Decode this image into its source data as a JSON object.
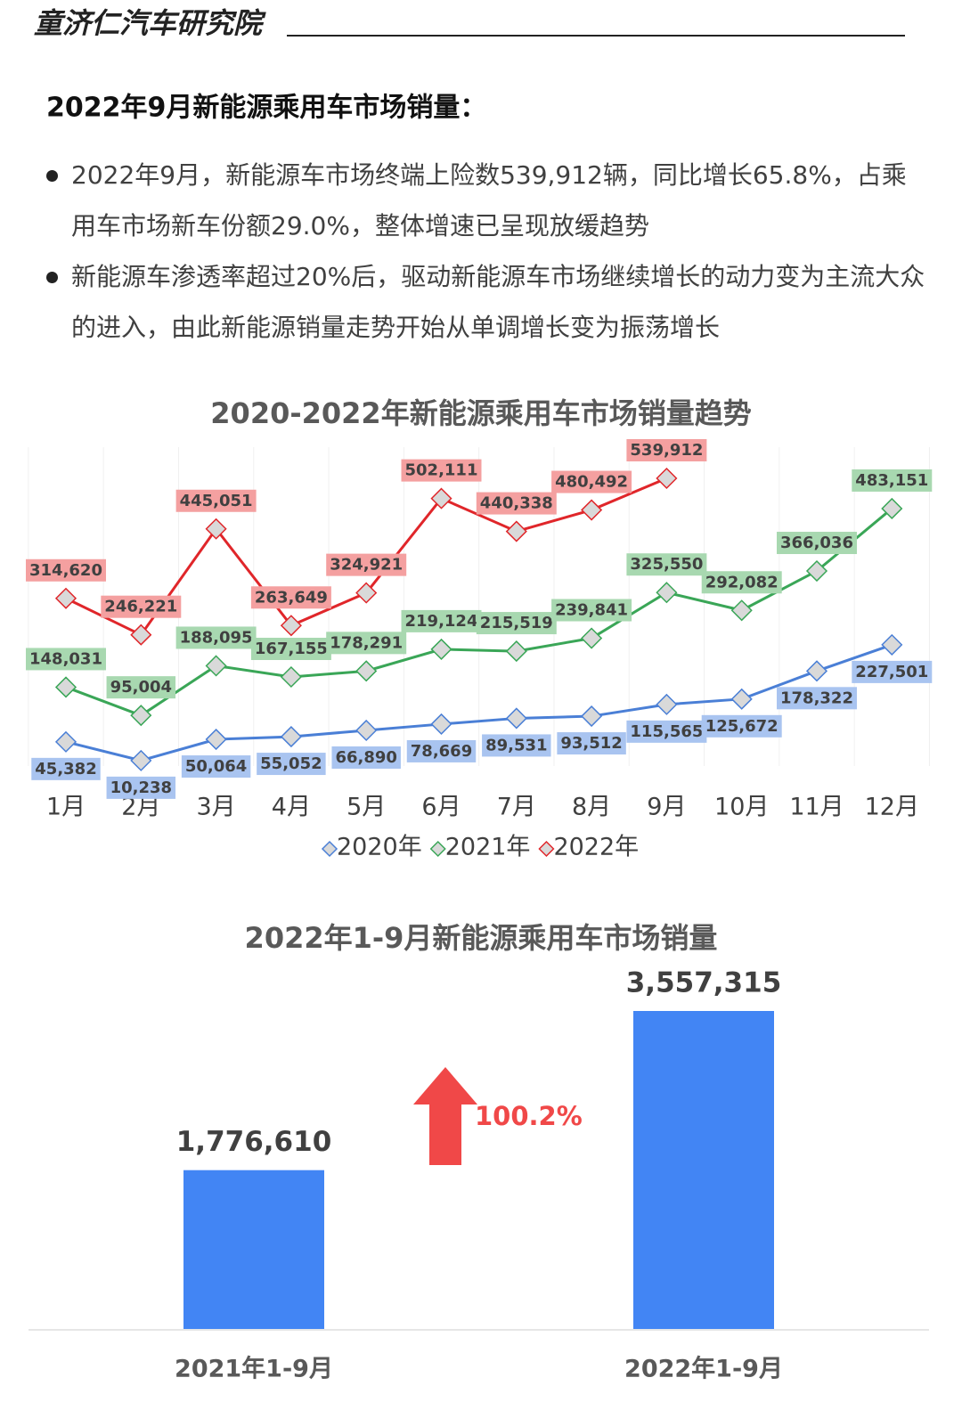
{
  "header": {
    "brand": "童济仁汽车研究院"
  },
  "section": {
    "title": "2022年9月新能源乘用车市场销量：",
    "bullets": [
      "2022年9月，新能源车市场终端上险数539,912辆，同比增长65.8%，占乘用车市场新车份额29.0%，整体增速已呈现放缓趋势",
      "新能源车渗透率超过20%后，驱动新能源车市场继续增长的动力变为主流大众的进入，由此新能源销量走势开始从单调增长变为振荡增长"
    ]
  },
  "chart_data": [
    {
      "type": "line",
      "title": "2020-2022年新能源乘用车市场销量趋势",
      "categories": [
        "1月",
        "2月",
        "3月",
        "4月",
        "5月",
        "6月",
        "7月",
        "8月",
        "9月",
        "10月",
        "11月",
        "12月"
      ],
      "series": [
        {
          "name": "2020年",
          "color": "#4a7fd6",
          "label_color": "#a9c4f0",
          "values": [
            45382,
            10238,
            50064,
            55052,
            66890,
            78669,
            89531,
            93512,
            115565,
            125672,
            178322,
            227501
          ],
          "value_labels": [
            "45,382",
            "10,238",
            "50,064",
            "55,052",
            "66,890",
            "78,669",
            "89,531",
            "93,512",
            "115,565",
            "125,672",
            "178,322",
            "227,501"
          ]
        },
        {
          "name": "2021年",
          "color": "#3aa657",
          "label_color": "#a8d8b0",
          "values": [
            148031,
            95004,
            188095,
            167155,
            178291,
            219124,
            215519,
            239841,
            325550,
            292082,
            366036,
            483151
          ],
          "value_labels": [
            "148,031",
            "95,004",
            "188,095",
            "167,155",
            "178,291",
            "219,124",
            "215,519",
            "239,841",
            "325,550",
            "292,082",
            "366,036",
            "483,151"
          ]
        },
        {
          "name": "2022年",
          "color": "#e0262a",
          "label_color": "#f4a0a0",
          "values": [
            314620,
            246221,
            445051,
            263649,
            324921,
            502111,
            440338,
            480492,
            539912,
            null,
            null,
            null
          ],
          "value_labels": [
            "314,620",
            "246,221",
            "445,051",
            "263,649",
            "324,921",
            "502,111",
            "440,338",
            "480,492",
            "539,912",
            null,
            null,
            null
          ]
        }
      ],
      "legend": "bottom"
    },
    {
      "type": "bar",
      "title": "2022年1-9月新能源乘用车市场销量",
      "categories": [
        "2021年1-9月",
        "2022年1-9月"
      ],
      "values": [
        1776610,
        3557315
      ],
      "value_labels": [
        "1,776,610",
        "3,557,315"
      ],
      "color": "#4285f4",
      "annotation": "100.2%",
      "annotation_color": "#f04848"
    }
  ]
}
